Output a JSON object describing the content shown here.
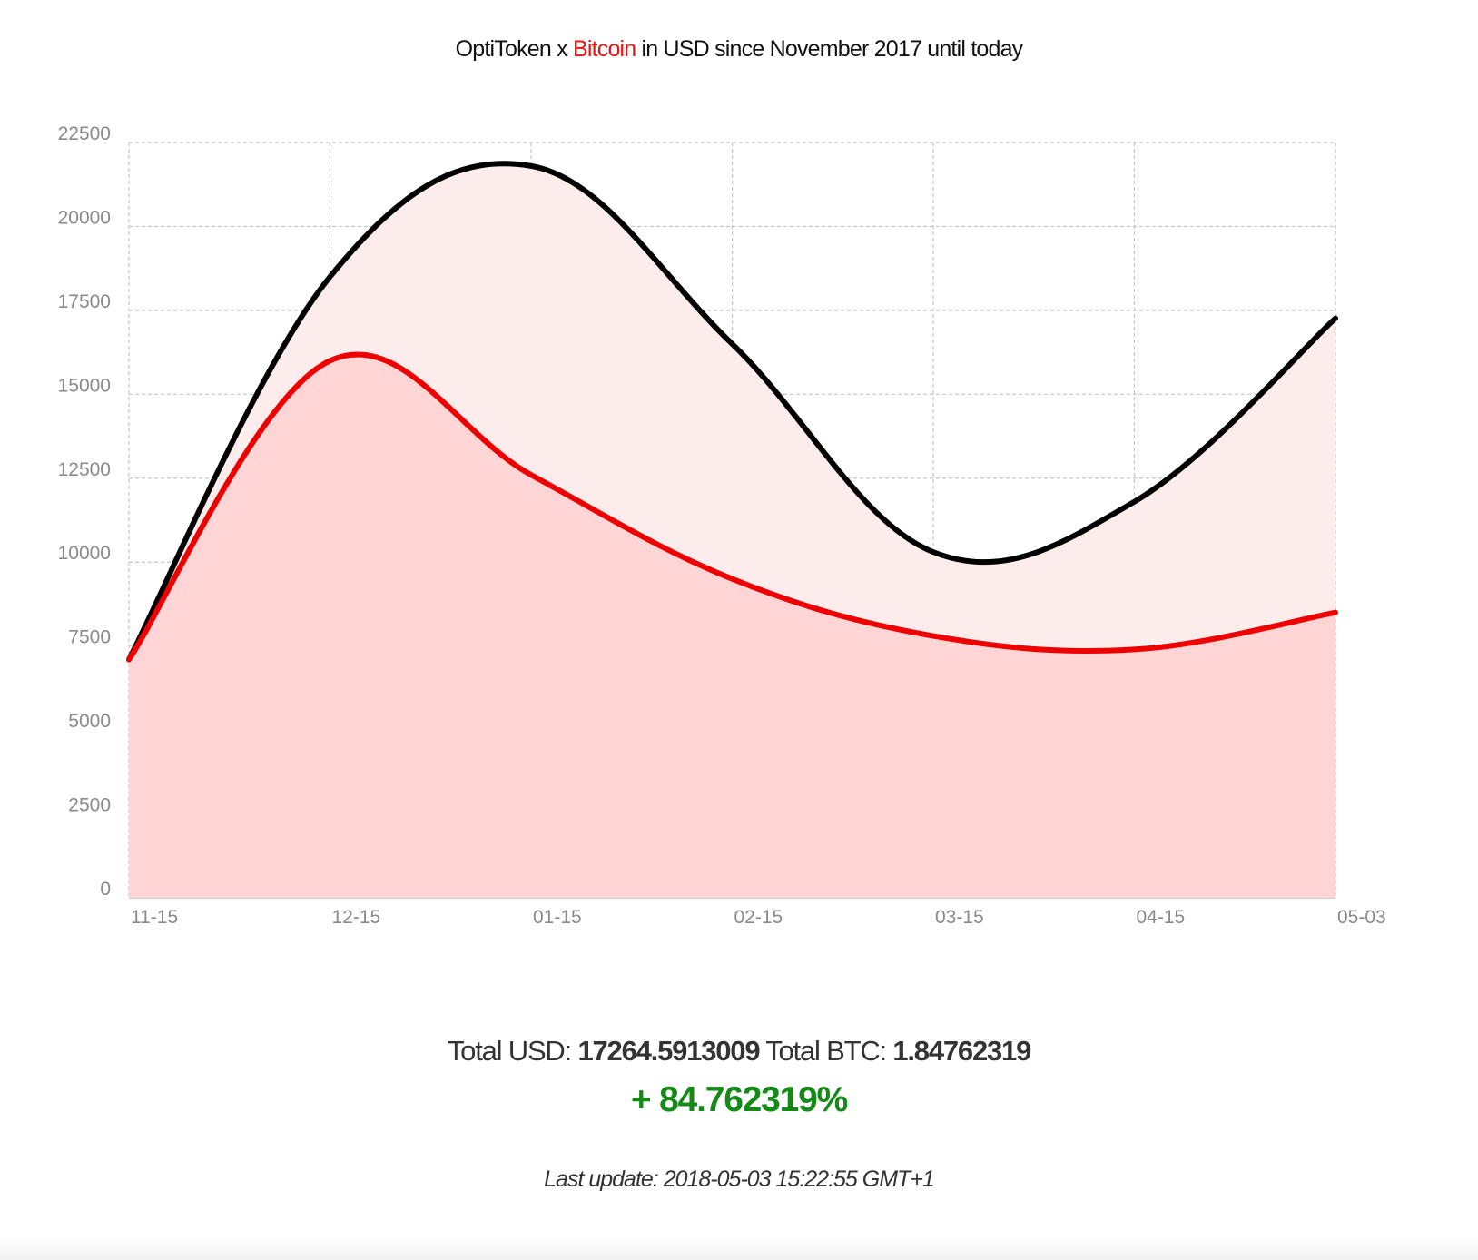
{
  "header": {
    "title_part1": "OptiToken x ",
    "title_accent": "Bitcoin",
    "title_part2": " in USD since November 2017 until today"
  },
  "chart_data": {
    "type": "area",
    "title": "OptiToken x Bitcoin in USD since November 2017 until today",
    "x_tick_labels": [
      "11-15",
      "12-15",
      "01-15",
      "02-15",
      "03-15",
      "04-15",
      "05-03"
    ],
    "y_tick_labels": [
      "0",
      "2500",
      "5000",
      "7500",
      "10000",
      "12500",
      "15000",
      "17500",
      "20000",
      "22500"
    ],
    "ylim": [
      0,
      22500
    ],
    "grid": true,
    "legend": "none",
    "series": [
      {
        "name": "OptiToken",
        "color": "#000000",
        "fill": "#fdecec",
        "values": [
          7100,
          18500,
          21800,
          16500,
          10300,
          11800,
          17264.59
        ]
      },
      {
        "name": "Bitcoin",
        "color": "#ee0000",
        "fill": "#ffd5d6",
        "values": [
          7100,
          16000,
          12600,
          9500,
          7800,
          7400,
          8500
        ]
      }
    ]
  },
  "summary": {
    "total_usd_label": "Total USD: ",
    "total_usd_value": "17264.5913009",
    "total_btc_label": " Total BTC: ",
    "total_btc_value": "1.84762319",
    "change": "+ 84.762319%",
    "last_update": "Last update: 2018-05-03 15:22:55 GMT+1"
  }
}
